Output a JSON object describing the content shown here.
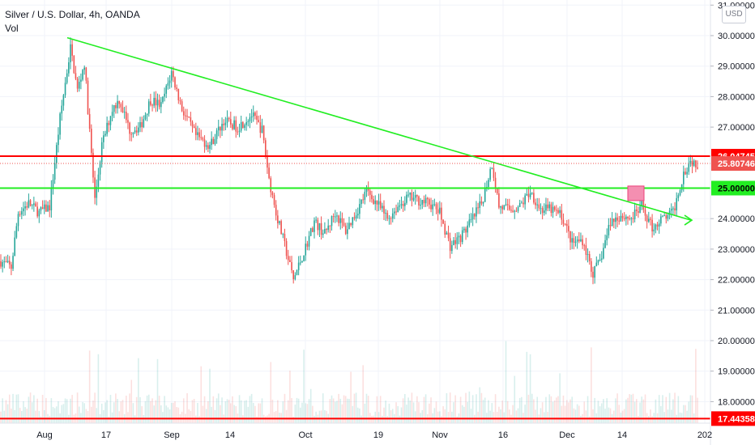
{
  "header": {
    "title": "Silver / U.S. Dollar, 4h, OANDA",
    "volume_label": "Vol"
  },
  "currency_button": "USD",
  "colors": {
    "up": "#26a69a",
    "down": "#ef5350",
    "trend": "#22ee22",
    "resistance": "#ff0000",
    "marker": "#f48fb1",
    "last_price": "#ef5350"
  },
  "chart_data": {
    "type": "candlestick",
    "y_axis": {
      "ylim": [
        17.2,
        31.15
      ],
      "ticks": [
        "31.00000",
        "30.00000",
        "29.00000",
        "28.00000",
        "27.00000",
        "24.00000",
        "23.00000",
        "22.00000",
        "21.00000",
        "20.00000",
        "19.00000",
        "18.00000"
      ],
      "tick_values": [
        31,
        30,
        29,
        28,
        27,
        24,
        23,
        22,
        21,
        20,
        19,
        18
      ]
    },
    "x_axis": {
      "ticks": [
        "Aug",
        "17",
        "Sep",
        "14",
        "Oct",
        "19",
        "Nov",
        "16",
        "Dec",
        "14",
        "202"
      ]
    },
    "price_path": [
      {
        "t": 0,
        "p": 22.6
      },
      {
        "t": 3,
        "p": 22.4
      },
      {
        "t": 5,
        "p": 24.2
      },
      {
        "t": 8,
        "p": 24.5
      },
      {
        "t": 11,
        "p": 24.2
      },
      {
        "t": 14,
        "p": 24.4
      },
      {
        "t": 17,
        "p": 27.3
      },
      {
        "t": 20,
        "p": 29.6
      },
      {
        "t": 22,
        "p": 28.2
      },
      {
        "t": 24,
        "p": 29.1
      },
      {
        "t": 26,
        "p": 26.1
      },
      {
        "t": 27,
        "p": 24.6
      },
      {
        "t": 29,
        "p": 26.4
      },
      {
        "t": 32,
        "p": 27.6
      },
      {
        "t": 34,
        "p": 27.9
      },
      {
        "t": 37,
        "p": 26.9
      },
      {
        "t": 40,
        "p": 27.0
      },
      {
        "t": 43,
        "p": 27.9
      },
      {
        "t": 46,
        "p": 27.7
      },
      {
        "t": 49,
        "p": 28.8
      },
      {
        "t": 52,
        "p": 27.6
      },
      {
        "t": 56,
        "p": 26.7
      },
      {
        "t": 60,
        "p": 26.4
      },
      {
        "t": 64,
        "p": 27.2
      },
      {
        "t": 68,
        "p": 27.0
      },
      {
        "t": 72,
        "p": 27.4
      },
      {
        "t": 75,
        "p": 26.9
      },
      {
        "t": 77,
        "p": 25.3
      },
      {
        "t": 79,
        "p": 24.2
      },
      {
        "t": 82,
        "p": 22.9
      },
      {
        "t": 84,
        "p": 22.0
      },
      {
        "t": 87,
        "p": 22.9
      },
      {
        "t": 90,
        "p": 23.9
      },
      {
        "t": 93,
        "p": 23.5
      },
      {
        "t": 96,
        "p": 24.2
      },
      {
        "t": 99,
        "p": 23.6
      },
      {
        "t": 102,
        "p": 24.2
      },
      {
        "t": 105,
        "p": 24.9
      },
      {
        "t": 108,
        "p": 24.5
      },
      {
        "t": 111,
        "p": 24.0
      },
      {
        "t": 114,
        "p": 24.4
      },
      {
        "t": 117,
        "p": 24.7
      },
      {
        "t": 120,
        "p": 24.6
      },
      {
        "t": 123,
        "p": 24.5
      },
      {
        "t": 126,
        "p": 24.2
      },
      {
        "t": 129,
        "p": 23.1
      },
      {
        "t": 132,
        "p": 23.4
      },
      {
        "t": 135,
        "p": 23.9
      },
      {
        "t": 138,
        "p": 24.5
      },
      {
        "t": 141,
        "p": 25.8
      },
      {
        "t": 143,
        "p": 24.4
      },
      {
        "t": 146,
        "p": 24.3
      },
      {
        "t": 149,
        "p": 24.4
      },
      {
        "t": 152,
        "p": 24.9
      },
      {
        "t": 155,
        "p": 24.3
      },
      {
        "t": 158,
        "p": 24.3
      },
      {
        "t": 161,
        "p": 24.1
      },
      {
        "t": 164,
        "p": 23.2
      },
      {
        "t": 167,
        "p": 23.3
      },
      {
        "t": 170,
        "p": 22.2
      },
      {
        "t": 172,
        "p": 22.6
      },
      {
        "t": 175,
        "p": 23.9
      },
      {
        "t": 178,
        "p": 24.1
      },
      {
        "t": 181,
        "p": 24.0
      },
      {
        "t": 184,
        "p": 24.4
      },
      {
        "t": 187,
        "p": 23.7
      },
      {
        "t": 190,
        "p": 24.0
      },
      {
        "t": 193,
        "p": 24.2
      },
      {
        "t": 196,
        "p": 25.5
      },
      {
        "t": 198,
        "p": 25.9
      },
      {
        "t": 200,
        "p": 25.8
      }
    ],
    "last_close": 25.80746,
    "lines": [
      {
        "name": "",
        "kind": "horizontal",
        "price": 26.04745,
        "color": "#ff0000",
        "label": "26.04745"
      },
      {
        "name": "",
        "kind": "horizontal",
        "price": 25.0,
        "color": "#22ee22",
        "label": "25.00000"
      },
      {
        "name": "",
        "kind": "horizontal",
        "price": 17.44358,
        "color": "#ff0000",
        "label": "17.44358"
      },
      {
        "name": "",
        "kind": "trend",
        "color": "#22ee22",
        "start": {
          "t": 20,
          "p": 29.93
        },
        "end": {
          "t": 211,
          "p": 23.95
        }
      }
    ],
    "last_price_label": "25.80746",
    "marker_box": {
      "t0": 190,
      "t1": 195,
      "p0": 24.35,
      "p1": 24.75
    }
  }
}
